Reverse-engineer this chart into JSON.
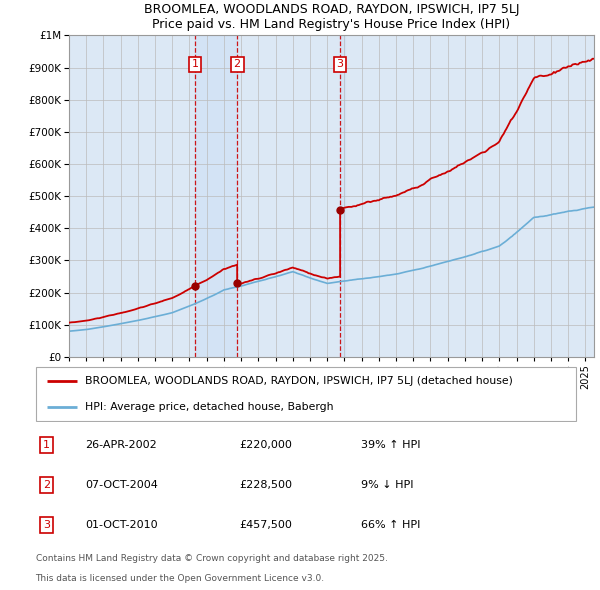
{
  "title": "BROOMLEA, WOODLANDS ROAD, RAYDON, IPSWICH, IP7 5LJ",
  "subtitle": "Price paid vs. HM Land Registry's House Price Index (HPI)",
  "legend_property": "BROOMLEA, WOODLANDS ROAD, RAYDON, IPSWICH, IP7 5LJ (detached house)",
  "legend_hpi": "HPI: Average price, detached house, Babergh",
  "footer1": "Contains HM Land Registry data © Crown copyright and database right 2025.",
  "footer2": "This data is licensed under the Open Government Licence v3.0.",
  "transactions": [
    {
      "num": 1,
      "date": "26-APR-2002",
      "price": 220000,
      "pct": "39%",
      "dir": "↑",
      "x_year": 2002.32
    },
    {
      "num": 2,
      "date": "07-OCT-2004",
      "price": 228500,
      "pct": "9%",
      "dir": "↓",
      "x_year": 2004.77
    },
    {
      "num": 3,
      "date": "01-OCT-2010",
      "price": 457500,
      "pct": "66%",
      "dir": "↑",
      "x_year": 2010.75
    }
  ],
  "hpi_color": "#6baed6",
  "property_color": "#cc0000",
  "dashed_color": "#cc0000",
  "shade_color": "#ddeeff",
  "background_color": "#e8f0f8",
  "plot_bg": "#dce8f5",
  "ylim": [
    0,
    1000000
  ],
  "xlim_start": 1995.0,
  "xlim_end": 2025.5,
  "yticks": [
    0,
    100000,
    200000,
    300000,
    400000,
    500000,
    600000,
    700000,
    800000,
    900000,
    1000000
  ]
}
